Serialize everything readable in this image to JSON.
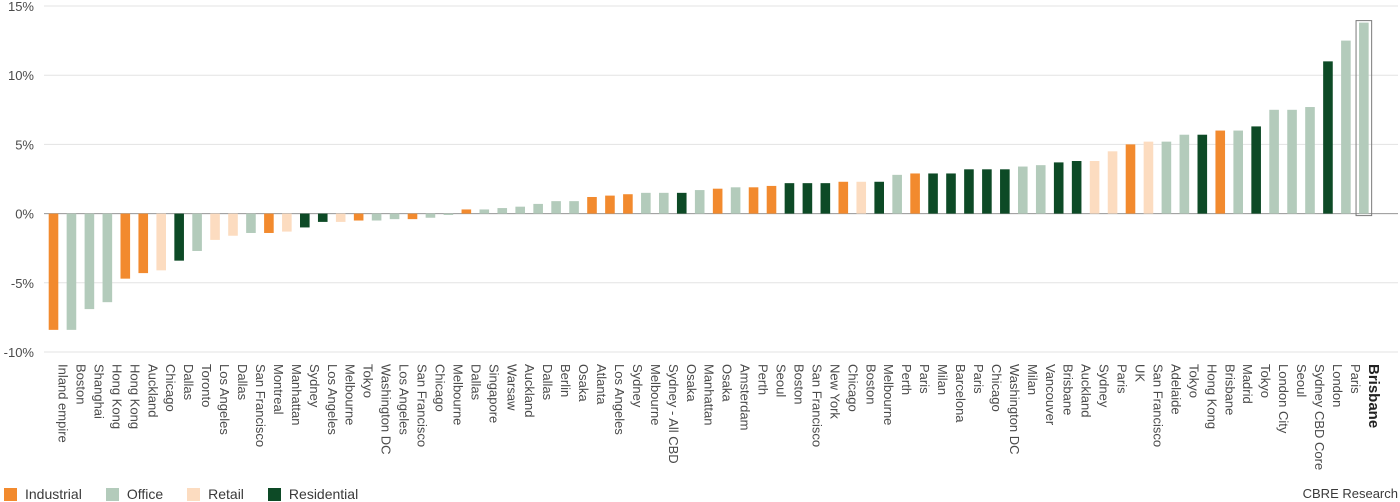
{
  "chart_data": {
    "type": "bar",
    "ylim": [
      -10,
      15
    ],
    "yticks": [
      "-10%",
      "-5%",
      "0%",
      "5%",
      "10%",
      "15%"
    ],
    "ytick_values": [
      -10,
      -5,
      0,
      5,
      10,
      15
    ],
    "grid": true,
    "legend_position": "bottom-left",
    "highlight": "Brisbane",
    "colors": {
      "Industrial": "#f28a2e",
      "Office": "#b3cbbb",
      "Retail": "#fcdcc0",
      "Residential": "#0d4a26"
    },
    "legend": [
      {
        "label": "Industrial",
        "color": "#f28a2e"
      },
      {
        "label": "Office",
        "color": "#b3cbbb"
      },
      {
        "label": "Retail",
        "color": "#fcdcc0"
      },
      {
        "label": "Residential",
        "color": "#0d4a26"
      }
    ],
    "bars": [
      {
        "label": "Inland empire",
        "sector": "Industrial",
        "value": -8.4
      },
      {
        "label": "Boston",
        "sector": "Office",
        "value": -8.4
      },
      {
        "label": "Shanghai",
        "sector": "Office",
        "value": -6.9
      },
      {
        "label": "Hong Kong",
        "sector": "Office",
        "value": -6.4
      },
      {
        "label": "Hong Kong",
        "sector": "Industrial",
        "value": -4.7
      },
      {
        "label": "Auckland",
        "sector": "Industrial",
        "value": -4.3
      },
      {
        "label": "Chicago",
        "sector": "Retail",
        "value": -4.1
      },
      {
        "label": "Dallas",
        "sector": "Residential",
        "value": -3.4
      },
      {
        "label": "Toronto",
        "sector": "Office",
        "value": -2.7
      },
      {
        "label": "Los Angeles",
        "sector": "Retail",
        "value": -1.9
      },
      {
        "label": "Dallas",
        "sector": "Retail",
        "value": -1.6
      },
      {
        "label": "San Francisco",
        "sector": "Office",
        "value": -1.4
      },
      {
        "label": "Montreal",
        "sector": "Industrial",
        "value": -1.4
      },
      {
        "label": "Manhattan",
        "sector": "Retail",
        "value": -1.3
      },
      {
        "label": "Sydney",
        "sector": "Residential",
        "value": -1.0
      },
      {
        "label": "Los Angeles",
        "sector": "Residential",
        "value": -0.6
      },
      {
        "label": "Melbourne",
        "sector": "Retail",
        "value": -0.6
      },
      {
        "label": "Tokyo",
        "sector": "Industrial",
        "value": -0.5
      },
      {
        "label": "Washington DC",
        "sector": "Office",
        "value": -0.5
      },
      {
        "label": "Los Angeles",
        "sector": "Office",
        "value": -0.4
      },
      {
        "label": "San Francisco",
        "sector": "Industrial",
        "value": -0.4
      },
      {
        "label": "Chicago",
        "sector": "Office",
        "value": -0.3
      },
      {
        "label": "Melbourne",
        "sector": "Office",
        "value": -0.1
      },
      {
        "label": "Dallas",
        "sector": "Industrial",
        "value": 0.3
      },
      {
        "label": "Singapore",
        "sector": "Office",
        "value": 0.3
      },
      {
        "label": "Warsaw",
        "sector": "Office",
        "value": 0.4
      },
      {
        "label": "Auckland",
        "sector": "Office",
        "value": 0.5
      },
      {
        "label": "Dallas",
        "sector": "Office",
        "value": 0.7
      },
      {
        "label": "Berlin",
        "sector": "Office",
        "value": 0.9
      },
      {
        "label": "Osaka",
        "sector": "Office",
        "value": 0.9
      },
      {
        "label": "Atlanta",
        "sector": "Industrial",
        "value": 1.2
      },
      {
        "label": "Los Angeles",
        "sector": "Industrial",
        "value": 1.3
      },
      {
        "label": "Sydney",
        "sector": "Industrial",
        "value": 1.4
      },
      {
        "label": "Melbourne",
        "sector": "Office",
        "value": 1.5
      },
      {
        "label": "Sydney - All CBD",
        "sector": "Office",
        "value": 1.5
      },
      {
        "label": "Osaka",
        "sector": "Residential",
        "value": 1.5
      },
      {
        "label": "Manhattan",
        "sector": "Office",
        "value": 1.7
      },
      {
        "label": "Osaka",
        "sector": "Industrial",
        "value": 1.8
      },
      {
        "label": "Amsterdam",
        "sector": "Office",
        "value": 1.9
      },
      {
        "label": "Perth",
        "sector": "Industrial",
        "value": 1.9
      },
      {
        "label": "Seoul",
        "sector": "Industrial",
        "value": 2.0
      },
      {
        "label": "Boston",
        "sector": "Residential",
        "value": 2.2
      },
      {
        "label": "San Francisco",
        "sector": "Residential",
        "value": 2.2
      },
      {
        "label": "New York",
        "sector": "Residential",
        "value": 2.2
      },
      {
        "label": "Chicago",
        "sector": "Industrial",
        "value": 2.3
      },
      {
        "label": "Boston",
        "sector": "Retail",
        "value": 2.3
      },
      {
        "label": "Melbourne",
        "sector": "Residential",
        "value": 2.3
      },
      {
        "label": "Perth",
        "sector": "Office",
        "value": 2.8
      },
      {
        "label": "Paris",
        "sector": "Industrial",
        "value": 2.9
      },
      {
        "label": "Milan",
        "sector": "Residential",
        "value": 2.9
      },
      {
        "label": "Barcelona",
        "sector": "Residential",
        "value": 2.9
      },
      {
        "label": "Paris",
        "sector": "Residential",
        "value": 3.2
      },
      {
        "label": "Chicago",
        "sector": "Residential",
        "value": 3.2
      },
      {
        "label": "Washington DC",
        "sector": "Residential",
        "value": 3.2
      },
      {
        "label": "Milan",
        "sector": "Office",
        "value": 3.4
      },
      {
        "label": "Vancouver",
        "sector": "Office",
        "value": 3.5
      },
      {
        "label": "Brisbane",
        "sector": "Residential",
        "value": 3.7
      },
      {
        "label": "Auckland",
        "sector": "Residential",
        "value": 3.8
      },
      {
        "label": "Sydney",
        "sector": "Retail",
        "value": 3.8
      },
      {
        "label": "Paris",
        "sector": "Retail",
        "value": 4.5
      },
      {
        "label": "UK",
        "sector": "Industrial",
        "value": 5.0
      },
      {
        "label": "San Francisco",
        "sector": "Retail",
        "value": 5.2
      },
      {
        "label": "Adelaide",
        "sector": "Office",
        "value": 5.2
      },
      {
        "label": "Tokyo",
        "sector": "Office",
        "value": 5.7
      },
      {
        "label": "Hong Kong",
        "sector": "Residential",
        "value": 5.7
      },
      {
        "label": "Brisbane",
        "sector": "Industrial",
        "value": 6.0
      },
      {
        "label": "Madrid",
        "sector": "Office",
        "value": 6.0
      },
      {
        "label": "Tokyo",
        "sector": "Residential",
        "value": 6.3
      },
      {
        "label": "London City",
        "sector": "Office",
        "value": 7.5
      },
      {
        "label": "Seoul",
        "sector": "Office",
        "value": 7.5
      },
      {
        "label": "Sydney CBD Core",
        "sector": "Office",
        "value": 7.7
      },
      {
        "label": "London",
        "sector": "Residential",
        "value": 11.0
      },
      {
        "label": "Paris",
        "sector": "Office",
        "value": 12.5
      },
      {
        "label": "Brisbane",
        "sector": "Office",
        "value": 13.8
      }
    ]
  },
  "source": "CBRE Research"
}
